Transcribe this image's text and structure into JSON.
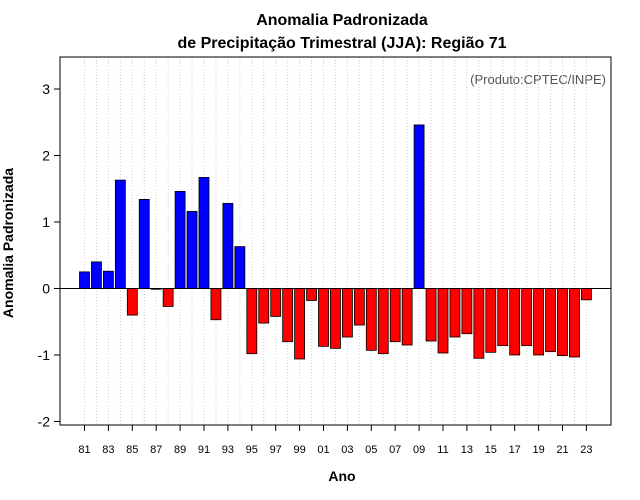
{
  "chart_data": {
    "type": "bar",
    "title": "Anomalia Padronizada",
    "subtitle": "de Precipitação Trimestral (JJA): Região 71",
    "xlabel": "Ano",
    "ylabel": "Anomalia Padronizada",
    "annotation": "(Produto:CPTEC/INPE)",
    "ylim": [
      -2.1,
      3.45
    ],
    "yticks": [
      -2,
      -1,
      0,
      1,
      2,
      3
    ],
    "grid": "vertical-dotted",
    "colors": {
      "positive": "#0000ff",
      "negative": "#ff0000",
      "edge": "#000000",
      "grid": "#cccccc"
    },
    "categories": [
      "81",
      "82",
      "83",
      "84",
      "85",
      "86",
      "87",
      "88",
      "89",
      "90",
      "91",
      "92",
      "93",
      "94",
      "95",
      "96",
      "97",
      "98",
      "99",
      "00",
      "01",
      "02",
      "03",
      "04",
      "05",
      "06",
      "07",
      "08",
      "09",
      "10",
      "11",
      "12",
      "13",
      "14",
      "15",
      "16",
      "17",
      "18",
      "19",
      "20",
      "21",
      "22",
      "23"
    ],
    "tick_labels": [
      "81",
      "83",
      "85",
      "87",
      "89",
      "91",
      "93",
      "95",
      "97",
      "99",
      "01",
      "03",
      "05",
      "07",
      "09",
      "11",
      "13",
      "15",
      "17",
      "19",
      "21",
      "23"
    ],
    "values": [
      0.25,
      0.4,
      0.26,
      1.63,
      -0.4,
      1.34,
      0.0,
      -0.27,
      1.46,
      1.16,
      1.67,
      -0.47,
      1.28,
      0.63,
      -0.98,
      -0.52,
      -0.42,
      -0.8,
      -1.06,
      -0.18,
      -0.87,
      -0.9,
      -0.73,
      -0.55,
      -0.93,
      -0.98,
      -0.8,
      -0.85,
      2.46,
      -0.79,
      -0.97,
      -0.73,
      -0.68,
      -1.05,
      -0.96,
      -0.86,
      -1.0,
      -0.86,
      -1.0,
      -0.95,
      -1.01,
      -1.03,
      -0.17
    ]
  }
}
